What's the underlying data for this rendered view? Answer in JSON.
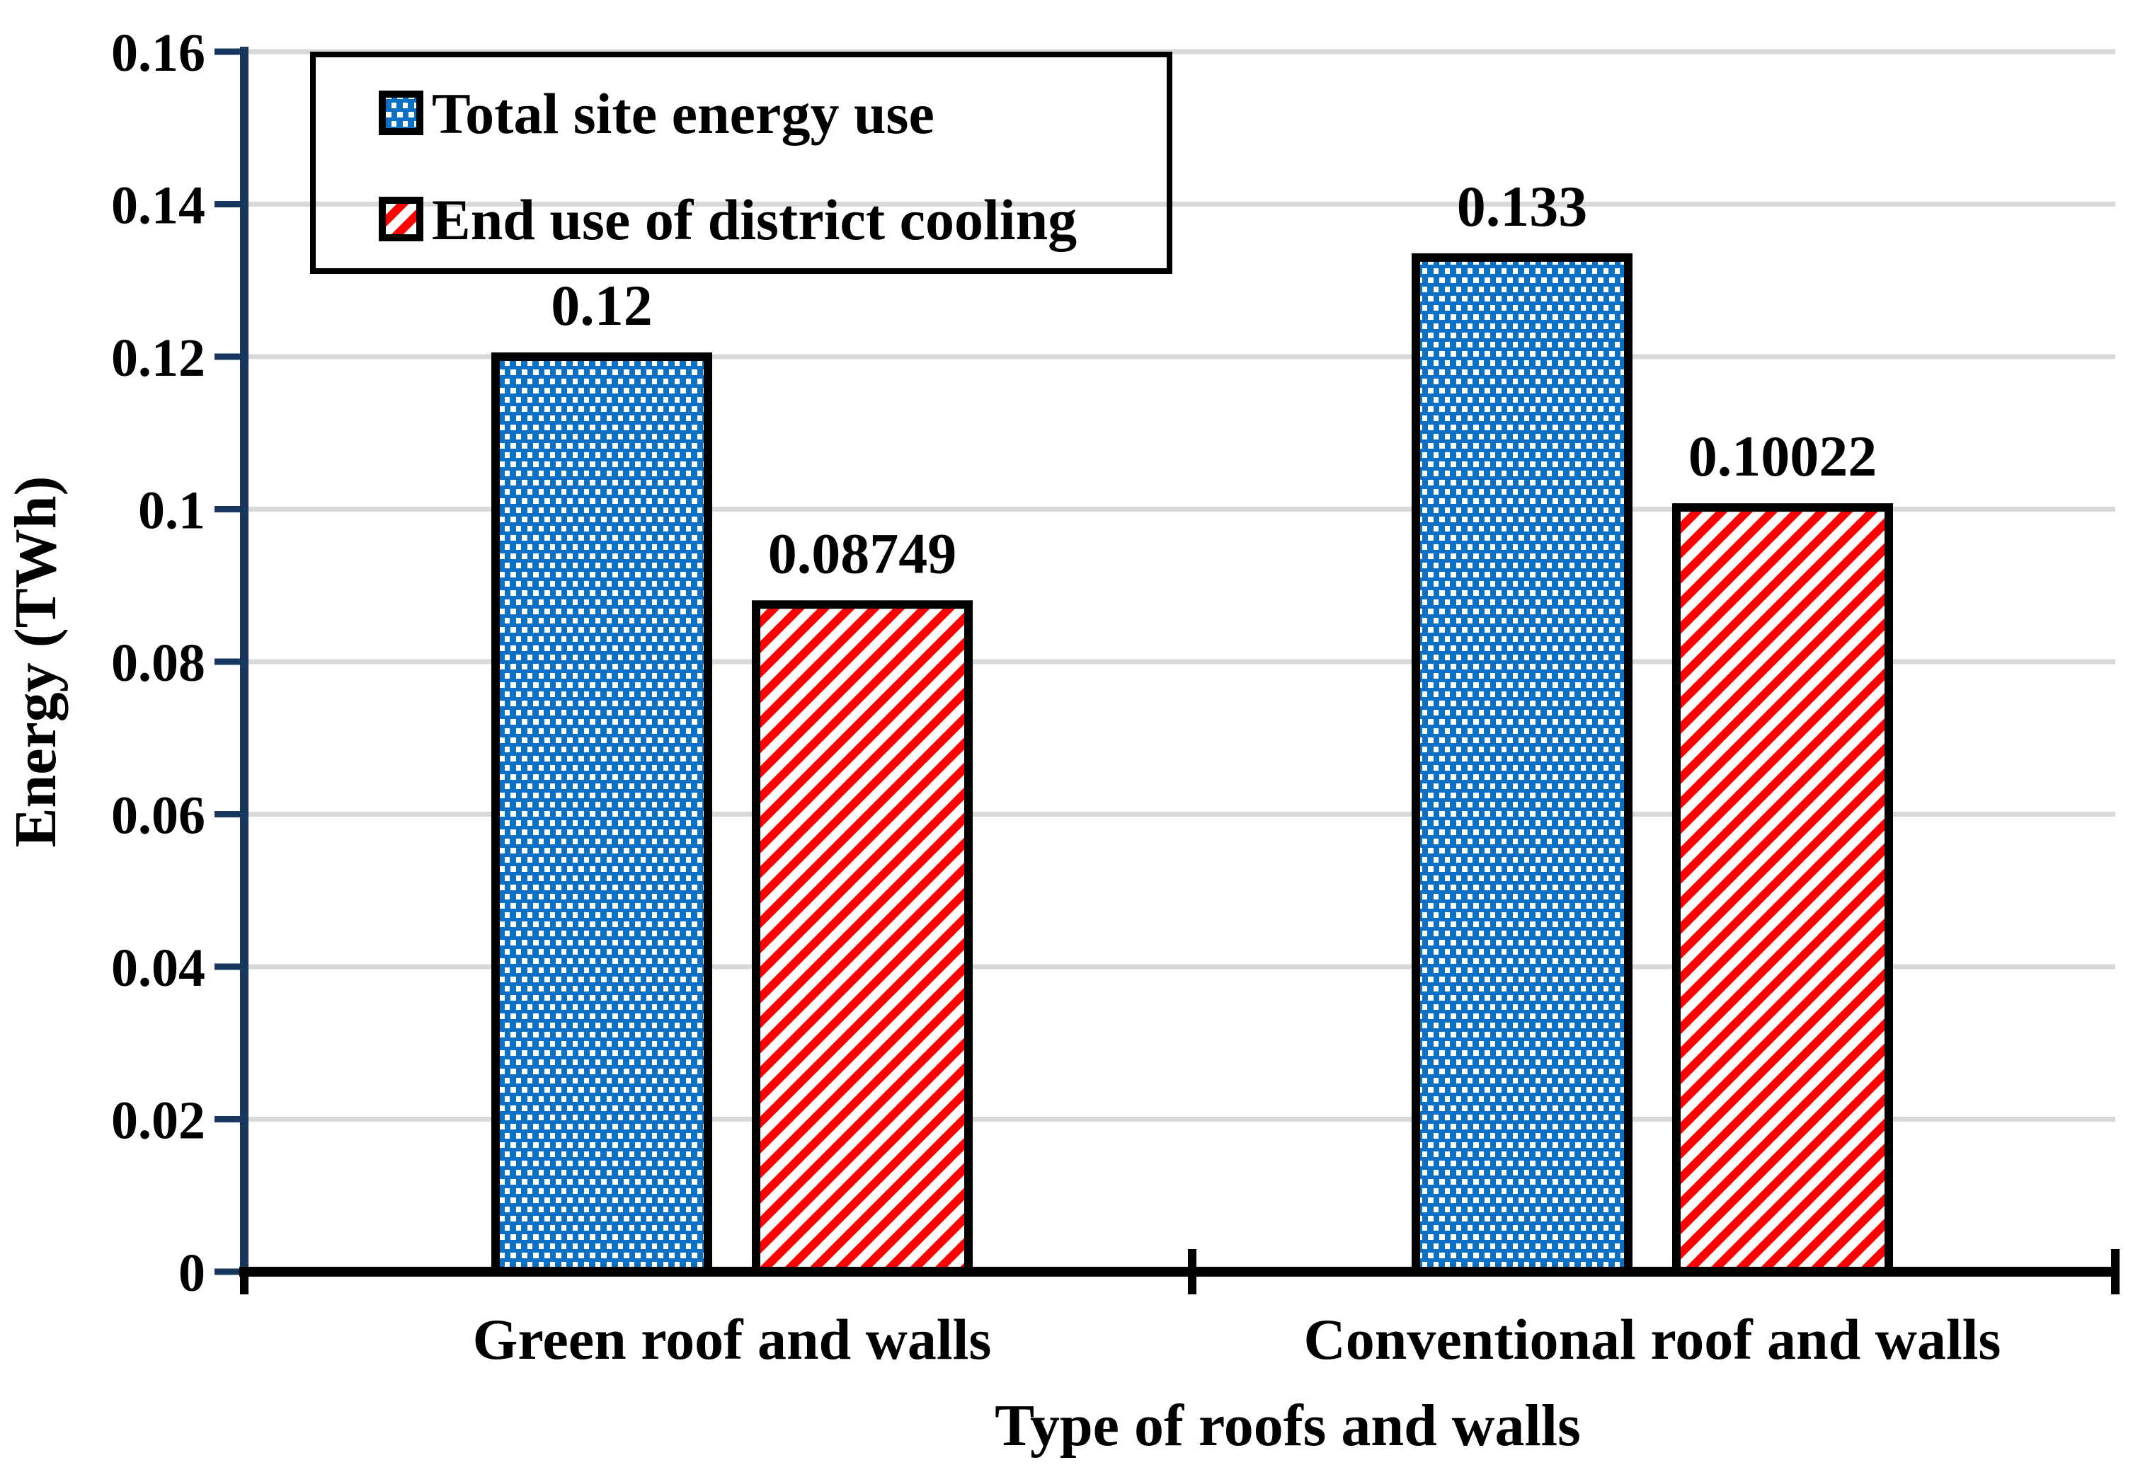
{
  "chart_data": {
    "type": "bar",
    "title": "",
    "categories": [
      "Green roof and walls",
      "Conventional roof and walls"
    ],
    "series": [
      {
        "name": "Total site energy use",
        "values": [
          0.12,
          0.133
        ],
        "value_labels": [
          "0.12",
          "0.133"
        ],
        "pattern": "blue-dotted"
      },
      {
        "name": "End use of district cooling",
        "values": [
          0.08749,
          0.10022
        ],
        "value_labels": [
          "0.08749",
          "0.10022"
        ],
        "pattern": "red-diagonal-hatch"
      }
    ],
    "xlabel": "Type of roofs and walls",
    "ylabel": "Energy (TWh)",
    "ylim": [
      0,
      0.16
    ],
    "ytick_step": 0.02,
    "ytick_labels": [
      "0",
      "0.02",
      "0.04",
      "0.06",
      "0.08",
      "0.1",
      "0.12",
      "0.14",
      "0.16"
    ],
    "grid": true,
    "legend_position": "top-left"
  },
  "colors": {
    "series1_fill": "#0C70C5",
    "series1_dot": "#FFFFFF",
    "series2_stripe": "#FF0000",
    "series2_bg": "#FFFFFF",
    "bar_border": "#000000",
    "axis_navy": "#17375E",
    "x_axis_black": "#000000",
    "gridline": "#D9D9D9",
    "text": "#000000"
  }
}
